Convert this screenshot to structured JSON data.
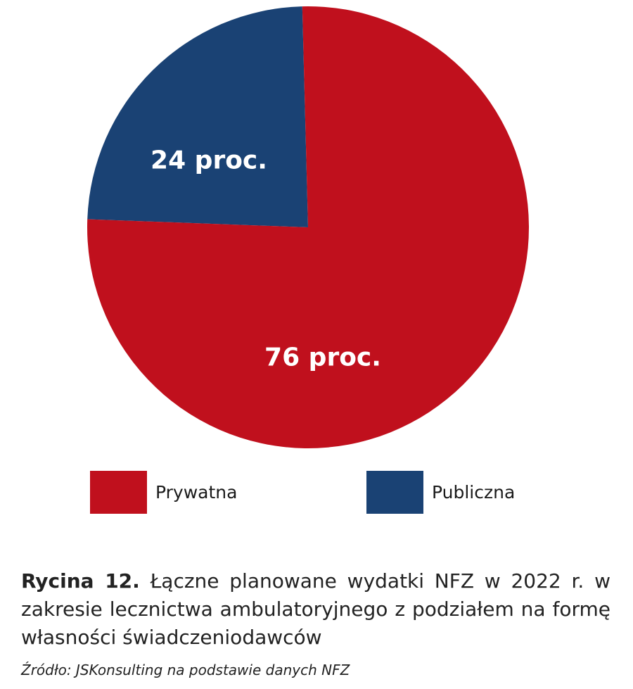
{
  "chart_data": {
    "type": "pie",
    "series": [
      {
        "name": "Publiczna",
        "value": 24,
        "label": "24 proc.",
        "color": "#1a4274"
      },
      {
        "name": "Prywatna",
        "value": 76,
        "label": "76 proc.",
        "color": "#c0101d"
      }
    ],
    "legend": {
      "placement": "bottom",
      "entries": [
        {
          "label": "Prywatna",
          "color": "#c0101d"
        },
        {
          "label": "Publiczna",
          "color": "#1a4274"
        }
      ]
    }
  },
  "caption": {
    "label": "Rycina 12.",
    "text": "Łączne planowane wydatki NFZ w 2022 r. w zakresie lecznictwa ambulatoryjnego z podziałem na formę własności świadczeniodawców"
  },
  "source": "Źródło: JSKonsulting na podstawie danych NFZ"
}
